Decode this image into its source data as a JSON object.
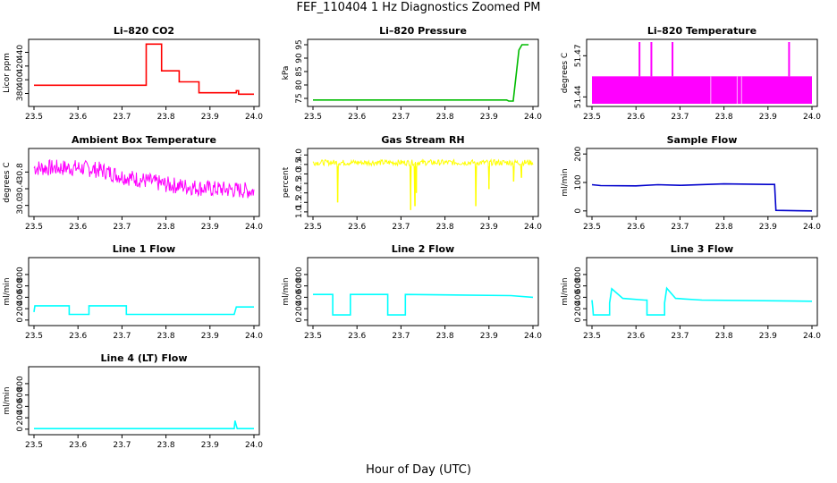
{
  "title": "FEF_110404  1 Hz Diagnostics Zoomed PM",
  "xlabel": "Hour of Day (UTC)",
  "chart_data": [
    {
      "id": "co2",
      "type": "line",
      "title": "Li–820 CO2",
      "ylabel": "Licor ppm",
      "color": "#ff0000",
      "xlim": [
        23.5,
        24.0
      ],
      "ylim": [
        365,
        455
      ],
      "yticks": [
        380,
        400,
        420,
        440
      ],
      "xticks": [
        "23.5",
        "23.6",
        "23.7",
        "23.8",
        "23.9",
        "24.0"
      ],
      "series": [
        {
          "name": "CO2",
          "x": [
            23.5,
            23.755,
            23.755,
            23.79,
            23.79,
            23.83,
            23.83,
            23.875,
            23.875,
            23.96,
            23.96,
            23.965,
            23.965,
            24.0
          ],
          "y": [
            392,
            392,
            452,
            452,
            413,
            413,
            397,
            397,
            381,
            381,
            384,
            384,
            379,
            379
          ]
        }
      ]
    },
    {
      "id": "pressure",
      "type": "line",
      "title": "Li–820 Pressure",
      "ylabel": "kPa",
      "color": "#00bb00",
      "xlim": [
        23.5,
        24.0
      ],
      "ylim": [
        73,
        96
      ],
      "yticks": [
        75,
        80,
        85,
        90,
        95
      ],
      "xticks": [
        "23.5",
        "23.6",
        "23.7",
        "23.8",
        "23.9",
        "24.0"
      ],
      "series": [
        {
          "name": "Pressure",
          "x": [
            23.5,
            23.94,
            23.945,
            23.955,
            23.962,
            23.968,
            23.975,
            23.99
          ],
          "y": [
            74.4,
            74.4,
            74.0,
            74.0,
            84,
            93,
            95,
            95
          ]
        }
      ]
    },
    {
      "id": "licor_temp",
      "type": "area",
      "title": "Li–820 Temperature",
      "ylabel": "degrees C",
      "color": "#ff00ff",
      "xlim": [
        23.5,
        24.0
      ],
      "ylim": [
        51.435,
        51.48
      ],
      "yticks": [
        51.44,
        51.47
      ],
      "xticks": [
        "23.5",
        "23.6",
        "23.7",
        "23.8",
        "23.9",
        "24.0"
      ],
      "band": {
        "x0": 23.5,
        "x1": 24.0,
        "low": 51.435,
        "high": 51.455
      },
      "spikes_x": [
        23.608,
        23.635,
        23.683,
        23.948
      ],
      "spike_top": 51.48
    },
    {
      "id": "box_temp",
      "type": "line",
      "title": "Ambient Box Temperature",
      "ylabel": "degrees C",
      "color": "#ff00ff",
      "xlim": [
        23.5,
        24.0
      ],
      "ylim": [
        29.8,
        31.3
      ],
      "yticks": [
        30.0,
        30.4,
        30.8
      ],
      "xticks": [
        "23.5",
        "23.6",
        "23.7",
        "23.8",
        "23.9",
        "24.0"
      ],
      "series": [
        {
          "name": "Box Temp",
          "x": [
            23.5,
            23.6,
            23.65,
            23.7,
            23.75,
            23.8,
            23.9,
            24.0
          ],
          "y": [
            30.9,
            30.9,
            30.85,
            30.7,
            30.6,
            30.5,
            30.4,
            30.35
          ]
        }
      ],
      "noise": 0.2
    },
    {
      "id": "rh",
      "type": "line",
      "title": "Gas Stream RH",
      "ylabel": "percent",
      "color": "#ffff00",
      "xlim": [
        23.5,
        24.0
      ],
      "ylim": [
        0.9,
        4.2
      ],
      "yticks": [
        1.0,
        1.5,
        2.0,
        2.5,
        3.0,
        3.5,
        4.0
      ],
      "xticks": [
        "23.5",
        "23.6",
        "23.7",
        "23.8",
        "23.9",
        "24.0"
      ],
      "series": [
        {
          "name": "RH",
          "x": [
            23.5,
            24.0
          ],
          "y": [
            3.6,
            3.6
          ]
        }
      ],
      "noise": 0.15,
      "dips": [
        {
          "x": 23.556,
          "y": 1.5
        },
        {
          "x": 23.722,
          "y": 1.1
        },
        {
          "x": 23.732,
          "y": 1.3
        },
        {
          "x": 23.735,
          "y": 2.0
        },
        {
          "x": 23.87,
          "y": 1.3
        },
        {
          "x": 23.9,
          "y": 2.2
        },
        {
          "x": 23.956,
          "y": 2.6
        },
        {
          "x": 23.974,
          "y": 2.8
        }
      ]
    },
    {
      "id": "sample_flow",
      "type": "line",
      "title": "Sample Flow",
      "ylabel": "ml/min",
      "color": "#0000cc",
      "xlim": [
        23.5,
        24.0
      ],
      "ylim": [
        -10,
        210
      ],
      "yticks": [
        0,
        100,
        200
      ],
      "xticks": [
        "23.5",
        "23.6",
        "23.7",
        "23.8",
        "23.9",
        "24.0"
      ],
      "series": [
        {
          "name": "Sample Flow",
          "x": [
            23.5,
            23.52,
            23.6,
            23.65,
            23.7,
            23.8,
            23.9,
            23.915,
            23.918,
            24.0
          ],
          "y": [
            92,
            89,
            88,
            92,
            90,
            95,
            93,
            93,
            2,
            0
          ]
        }
      ]
    },
    {
      "id": "line1",
      "type": "line",
      "title": "Line 1 Flow",
      "ylabel": "ml/min",
      "color": "#00ffff",
      "xlim": [
        23.5,
        24.0
      ],
      "ylim": [
        -50,
        1050
      ],
      "yticks": [
        0,
        200,
        400,
        600,
        800
      ],
      "xticks": [
        "23.5",
        "23.6",
        "23.7",
        "23.8",
        "23.9",
        "24.0"
      ],
      "series": [
        {
          "name": "Line 1",
          "x": [
            23.5,
            23.502,
            23.58,
            23.58,
            23.625,
            23.625,
            23.71,
            23.71,
            23.955,
            23.96,
            24.0
          ],
          "y": [
            140,
            250,
            250,
            100,
            100,
            250,
            250,
            100,
            100,
            230,
            230
          ]
        }
      ]
    },
    {
      "id": "line2",
      "type": "line",
      "title": "Line 2 Flow",
      "ylabel": "ml/min",
      "color": "#00ffff",
      "xlim": [
        23.5,
        24.0
      ],
      "ylim": [
        -50,
        1050
      ],
      "yticks": [
        0,
        200,
        400,
        600,
        800
      ],
      "xticks": [
        "23.5",
        "23.6",
        "23.7",
        "23.8",
        "23.9",
        "24.0"
      ],
      "series": [
        {
          "name": "Line 2",
          "x": [
            23.5,
            23.545,
            23.545,
            23.585,
            23.585,
            23.67,
            23.67,
            23.71,
            23.71,
            23.95,
            24.0
          ],
          "y": [
            450,
            450,
            90,
            90,
            450,
            450,
            90,
            90,
            450,
            430,
            400
          ]
        }
      ]
    },
    {
      "id": "line3",
      "type": "line",
      "title": "Line 3 Flow",
      "ylabel": "ml/min",
      "color": "#00ffff",
      "xlim": [
        23.5,
        24.0
      ],
      "ylim": [
        -50,
        1050
      ],
      "yticks": [
        0,
        200,
        400,
        600,
        800
      ],
      "xticks": [
        "23.5",
        "23.6",
        "23.7",
        "23.8",
        "23.9",
        "24.0"
      ],
      "series": [
        {
          "name": "Line 3",
          "x": [
            23.5,
            23.502,
            23.503,
            23.54,
            23.54,
            23.545,
            23.57,
            23.62,
            23.625,
            23.625,
            23.665,
            23.665,
            23.67,
            23.69,
            23.75,
            24.0
          ],
          "y": [
            350,
            200,
            90,
            90,
            300,
            550,
            380,
            350,
            350,
            90,
            90,
            300,
            560,
            380,
            350,
            330
          ]
        }
      ]
    },
    {
      "id": "line4",
      "type": "line",
      "title": "Line 4 (LT) Flow",
      "ylabel": "ml/min",
      "color": "#00ffff",
      "xlim": [
        23.5,
        24.0
      ],
      "ylim": [
        -50,
        1050
      ],
      "yticks": [
        0,
        200,
        400,
        600,
        800
      ],
      "xticks": [
        "23.5",
        "23.6",
        "23.7",
        "23.8",
        "23.9",
        "24.0"
      ],
      "series": [
        {
          "name": "Line 4",
          "x": [
            23.5,
            23.955,
            23.957,
            23.96,
            23.962,
            24.0
          ],
          "y": [
            10,
            10,
            150,
            60,
            10,
            10
          ]
        }
      ]
    }
  ]
}
